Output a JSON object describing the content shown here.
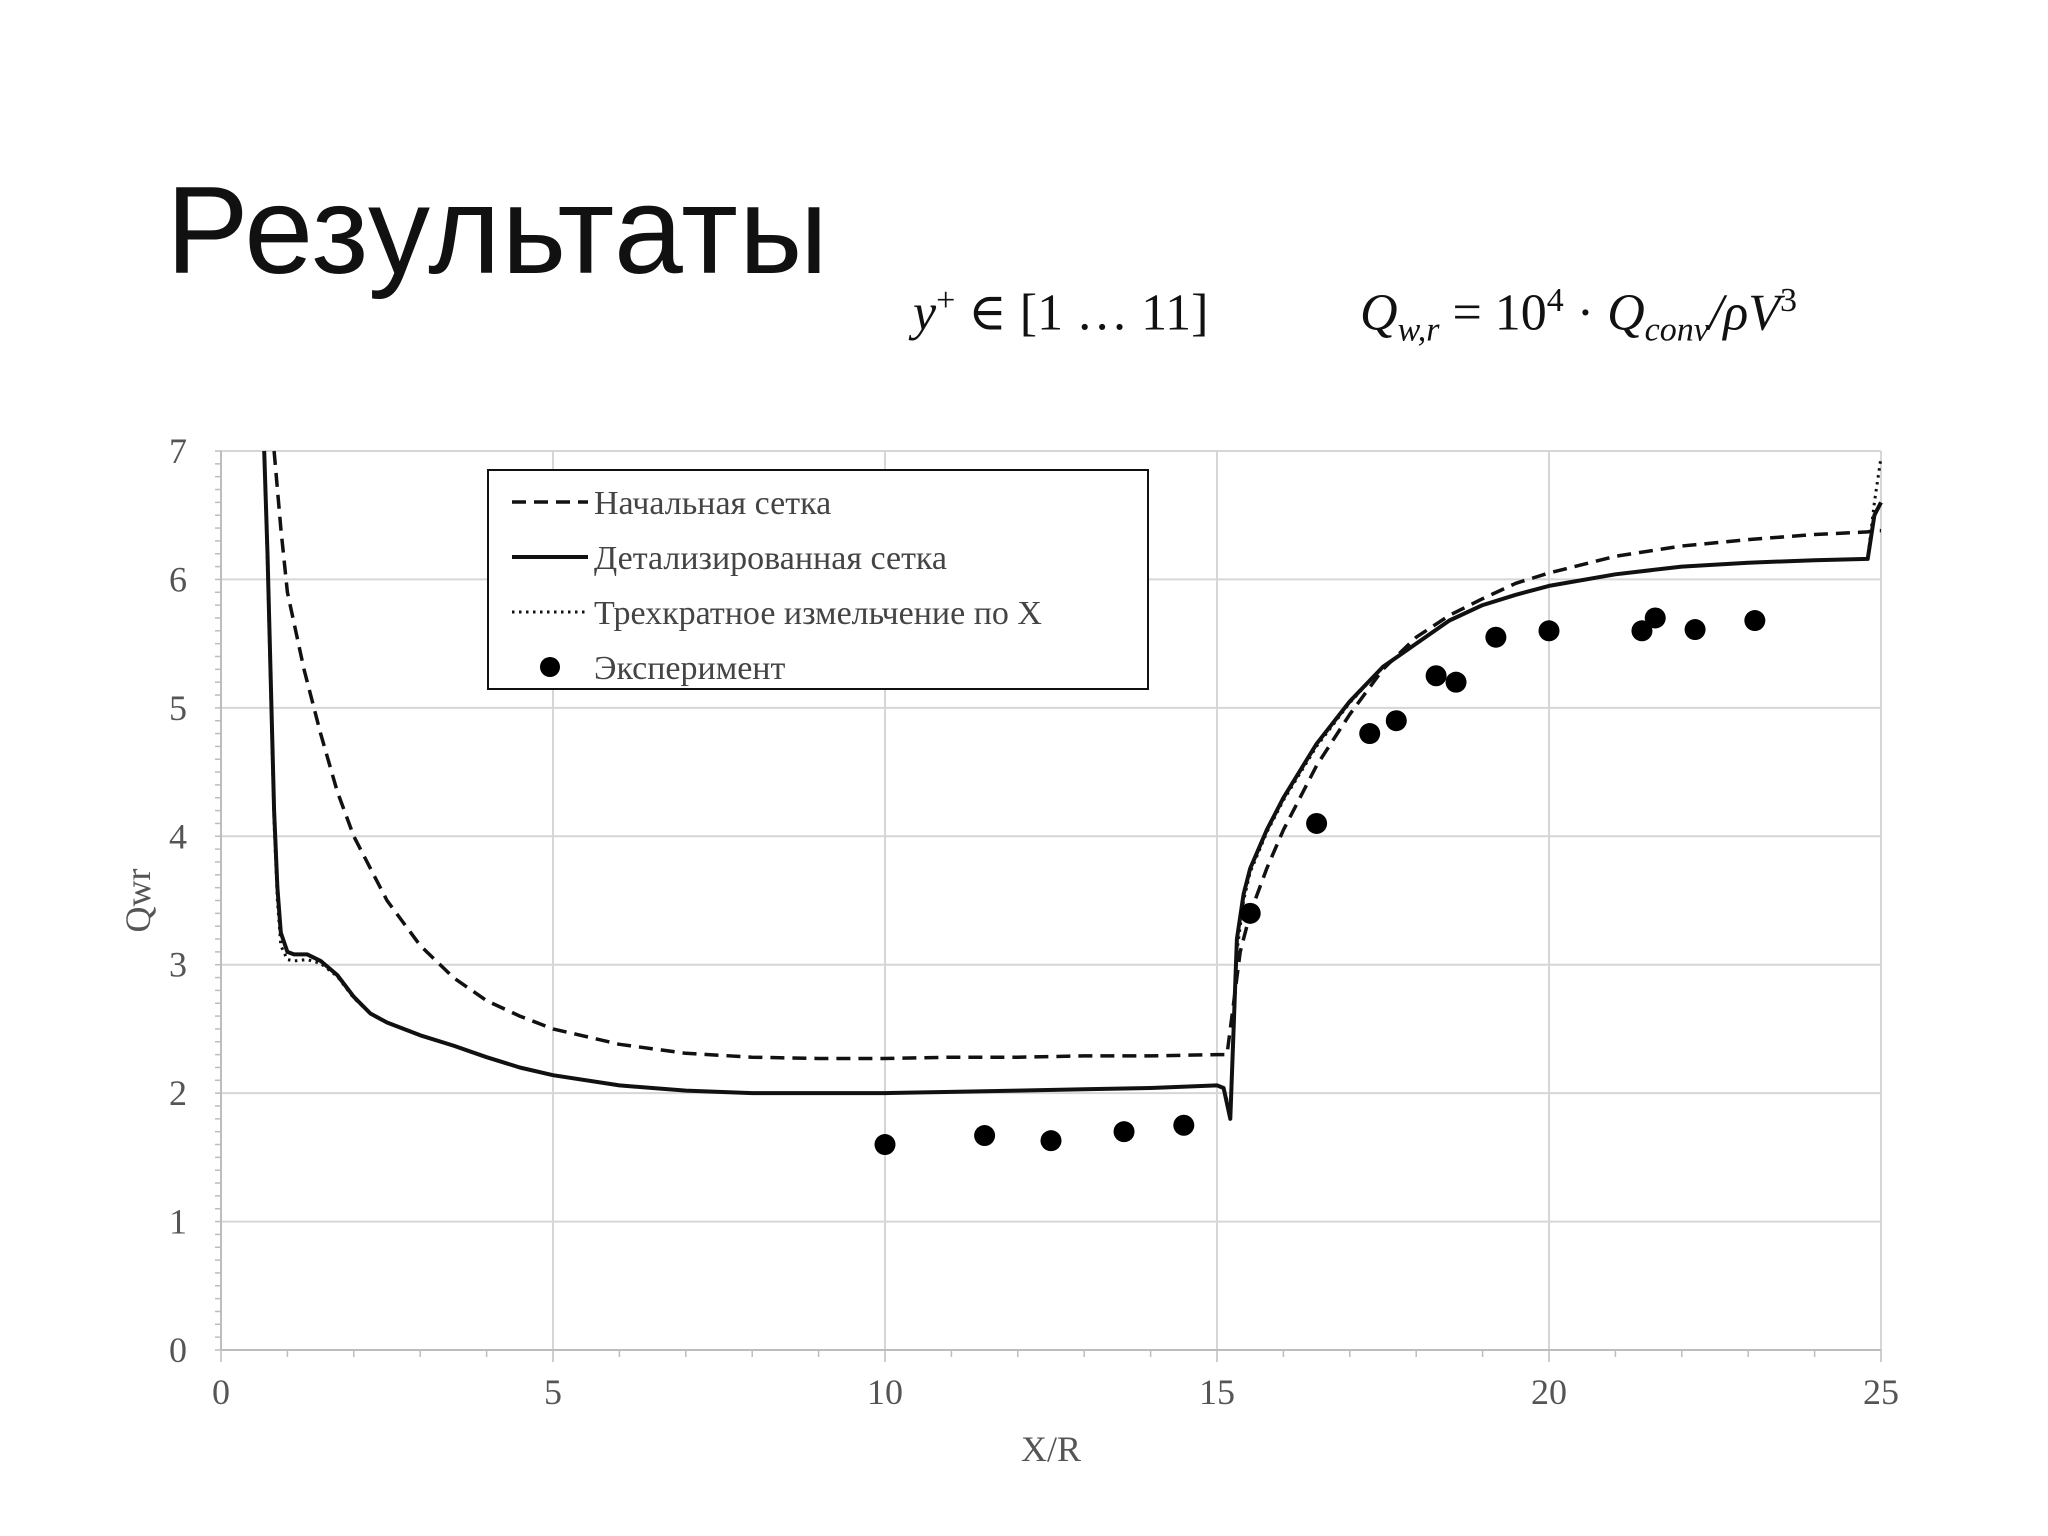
{
  "slide": {
    "title": "Результаты"
  },
  "formulas": {
    "yplus": {
      "var": "y",
      "sup": "+",
      "rest": " ∈ [1 … 11]"
    },
    "qwr": {
      "lhs": "Q",
      "lhs_sub": "w,r",
      "eq": " = 10",
      "exp": "4",
      "dot": " · ",
      "q": "Q",
      "q_sub": "conv",
      "tail": "/ρV",
      "tail_exp": "3"
    }
  },
  "chart_data": {
    "type": "line",
    "xlabel": "X/R",
    "ylabel": "Qwr",
    "xlim": [
      0,
      25
    ],
    "ylim": [
      0,
      7
    ],
    "xticks": [
      0,
      5,
      10,
      15,
      20,
      25
    ],
    "yticks": [
      0,
      1,
      2,
      3,
      4,
      5,
      6,
      7
    ],
    "grid": true,
    "legend_position": "top-center",
    "series": [
      {
        "name": "Начальная сетка",
        "style": "dashed",
        "color": "#111111",
        "points": [
          [
            0.8,
            7.0
          ],
          [
            0.9,
            6.4
          ],
          [
            1.0,
            5.9
          ],
          [
            1.25,
            5.3
          ],
          [
            1.5,
            4.8
          ],
          [
            1.75,
            4.35
          ],
          [
            2.0,
            4.0
          ],
          [
            2.5,
            3.5
          ],
          [
            3.0,
            3.15
          ],
          [
            3.5,
            2.9
          ],
          [
            4.0,
            2.72
          ],
          [
            4.5,
            2.6
          ],
          [
            5.0,
            2.5
          ],
          [
            6.0,
            2.38
          ],
          [
            7.0,
            2.31
          ],
          [
            8.0,
            2.28
          ],
          [
            9.0,
            2.27
          ],
          [
            10.0,
            2.27
          ],
          [
            11.0,
            2.28
          ],
          [
            12.0,
            2.28
          ],
          [
            13.0,
            2.29
          ],
          [
            14.0,
            2.29
          ],
          [
            15.0,
            2.3
          ],
          [
            15.15,
            2.3
          ],
          [
            15.25,
            2.7
          ],
          [
            15.35,
            3.1
          ],
          [
            15.5,
            3.4
          ],
          [
            15.75,
            3.75
          ],
          [
            16.0,
            4.05
          ],
          [
            16.5,
            4.55
          ],
          [
            17.0,
            4.95
          ],
          [
            17.5,
            5.3
          ],
          [
            18.0,
            5.55
          ],
          [
            18.5,
            5.72
          ],
          [
            19.0,
            5.85
          ],
          [
            19.5,
            5.97
          ],
          [
            20.0,
            6.05
          ],
          [
            21.0,
            6.18
          ],
          [
            22.0,
            6.26
          ],
          [
            23.0,
            6.31
          ],
          [
            24.0,
            6.35
          ],
          [
            24.8,
            6.37
          ],
          [
            24.9,
            6.38
          ],
          [
            25.0,
            6.38
          ]
        ]
      },
      {
        "name": "Детализированная сетка",
        "style": "solid",
        "color": "#111111",
        "points": [
          [
            0.65,
            7.0
          ],
          [
            0.7,
            6.2
          ],
          [
            0.75,
            5.2
          ],
          [
            0.8,
            4.2
          ],
          [
            0.85,
            3.6
          ],
          [
            0.9,
            3.25
          ],
          [
            1.0,
            3.1
          ],
          [
            1.1,
            3.08
          ],
          [
            1.3,
            3.08
          ],
          [
            1.5,
            3.03
          ],
          [
            1.75,
            2.92
          ],
          [
            2.0,
            2.75
          ],
          [
            2.25,
            2.62
          ],
          [
            2.5,
            2.55
          ],
          [
            3.0,
            2.45
          ],
          [
            3.5,
            2.37
          ],
          [
            4.0,
            2.28
          ],
          [
            4.5,
            2.2
          ],
          [
            5.0,
            2.14
          ],
          [
            6.0,
            2.06
          ],
          [
            7.0,
            2.02
          ],
          [
            8.0,
            2.0
          ],
          [
            9.0,
            2.0
          ],
          [
            10.0,
            2.0
          ],
          [
            11.0,
            2.01
          ],
          [
            12.0,
            2.02
          ],
          [
            13.0,
            2.03
          ],
          [
            14.0,
            2.04
          ],
          [
            15.0,
            2.06
          ],
          [
            15.1,
            2.04
          ],
          [
            15.2,
            1.8
          ],
          [
            15.3,
            3.2
          ],
          [
            15.4,
            3.55
          ],
          [
            15.5,
            3.75
          ],
          [
            15.75,
            4.05
          ],
          [
            16.0,
            4.3
          ],
          [
            16.5,
            4.72
          ],
          [
            17.0,
            5.05
          ],
          [
            17.5,
            5.32
          ],
          [
            18.0,
            5.5
          ],
          [
            18.5,
            5.68
          ],
          [
            19.0,
            5.8
          ],
          [
            19.5,
            5.88
          ],
          [
            20.0,
            5.95
          ],
          [
            21.0,
            6.04
          ],
          [
            22.0,
            6.1
          ],
          [
            23.0,
            6.13
          ],
          [
            24.0,
            6.15
          ],
          [
            24.8,
            6.16
          ],
          [
            24.9,
            6.5
          ],
          [
            25.0,
            6.6
          ]
        ]
      },
      {
        "name": "Трехкратное измельчение по Х",
        "style": "dotted",
        "color": "#111111",
        "points": [
          [
            0.65,
            7.0
          ],
          [
            0.7,
            6.1
          ],
          [
            0.75,
            5.1
          ],
          [
            0.8,
            4.1
          ],
          [
            0.85,
            3.5
          ],
          [
            0.9,
            3.15
          ],
          [
            1.0,
            3.04
          ],
          [
            1.1,
            3.03
          ],
          [
            1.3,
            3.04
          ],
          [
            1.5,
            3.01
          ],
          [
            1.75,
            2.91
          ],
          [
            2.0,
            2.74
          ],
          [
            2.25,
            2.62
          ],
          [
            2.5,
            2.55
          ],
          [
            3.0,
            2.45
          ],
          [
            3.5,
            2.37
          ],
          [
            4.0,
            2.28
          ],
          [
            4.5,
            2.2
          ],
          [
            5.0,
            2.14
          ],
          [
            6.0,
            2.06
          ],
          [
            7.0,
            2.02
          ],
          [
            8.0,
            2.0
          ],
          [
            9.0,
            2.0
          ],
          [
            10.0,
            2.0
          ],
          [
            11.0,
            2.01
          ],
          [
            12.0,
            2.02
          ],
          [
            13.0,
            2.03
          ],
          [
            14.0,
            2.04
          ],
          [
            15.0,
            2.06
          ],
          [
            15.1,
            2.04
          ],
          [
            15.2,
            1.85
          ],
          [
            15.3,
            3.1
          ],
          [
            15.4,
            3.5
          ],
          [
            15.5,
            3.72
          ],
          [
            15.75,
            4.03
          ],
          [
            16.0,
            4.28
          ],
          [
            16.5,
            4.7
          ],
          [
            17.0,
            5.04
          ],
          [
            17.5,
            5.32
          ],
          [
            18.0,
            5.5
          ],
          [
            18.5,
            5.68
          ],
          [
            19.0,
            5.8
          ],
          [
            19.5,
            5.88
          ],
          [
            20.0,
            5.95
          ],
          [
            21.0,
            6.04
          ],
          [
            22.0,
            6.1
          ],
          [
            23.0,
            6.13
          ],
          [
            24.0,
            6.15
          ],
          [
            24.8,
            6.16
          ],
          [
            24.9,
            6.6
          ],
          [
            25.0,
            6.95
          ]
        ]
      },
      {
        "name": "Эксперимент",
        "style": "markers",
        "color": "#000000",
        "points": [
          [
            10.0,
            1.6
          ],
          [
            11.5,
            1.67
          ],
          [
            12.5,
            1.63
          ],
          [
            13.6,
            1.7
          ],
          [
            14.5,
            1.75
          ],
          [
            15.5,
            3.4
          ],
          [
            16.5,
            4.1
          ],
          [
            17.3,
            4.8
          ],
          [
            17.7,
            4.9
          ],
          [
            18.3,
            5.25
          ],
          [
            18.6,
            5.2
          ],
          [
            19.2,
            5.55
          ],
          [
            20.0,
            5.6
          ],
          [
            21.4,
            5.6
          ],
          [
            21.6,
            5.7
          ],
          [
            22.2,
            5.61
          ],
          [
            23.1,
            5.68
          ]
        ]
      }
    ]
  }
}
